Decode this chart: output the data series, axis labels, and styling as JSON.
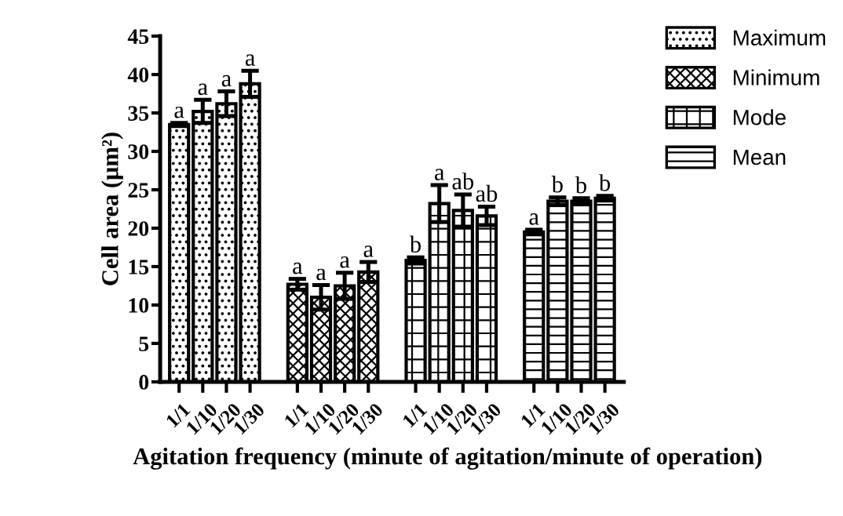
{
  "chart_data": {
    "type": "bar",
    "xlabel": "Agitation frequency (minute of agitation/minute of operation)",
    "ylabel": "Cell area (μm²)",
    "categories": [
      "1/1",
      "1/10",
      "1/20",
      "1/30",
      null,
      "1/1",
      "1/10",
      "1/20",
      "1/30",
      null,
      "1/1",
      "1/10",
      "1/20",
      "1/30",
      null,
      "1/1",
      "1/10",
      "1/20",
      "1/30"
    ],
    "series": [
      {
        "name": "Maximum",
        "color": "#000000",
        "values": [
          33.5,
          35.2,
          36.2,
          38.8,
          null,
          null,
          null,
          null,
          null,
          null,
          null,
          null,
          null,
          null,
          null,
          null,
          null,
          null,
          null
        ],
        "errors": [
          0.2,
          1.5,
          1.6,
          1.7,
          null,
          null,
          null,
          null,
          null,
          null,
          null,
          null,
          null,
          null,
          null,
          null,
          null,
          null,
          null
        ]
      },
      {
        "name": "Minimum",
        "color": "#000000",
        "values": [
          null,
          null,
          null,
          null,
          null,
          12.7,
          11.0,
          12.5,
          14.3,
          null,
          null,
          null,
          null,
          null,
          null,
          null,
          null,
          null,
          null
        ],
        "errors": [
          null,
          null,
          null,
          null,
          null,
          0.7,
          1.6,
          1.7,
          1.3,
          null,
          null,
          null,
          null,
          null,
          null,
          null,
          null,
          null,
          null
        ]
      },
      {
        "name": "Mode",
        "color": "#000000",
        "values": [
          null,
          null,
          null,
          null,
          null,
          null,
          null,
          null,
          null,
          null,
          15.8,
          23.2,
          22.3,
          21.6,
          null,
          null,
          null,
          null,
          null
        ],
        "errors": [
          null,
          null,
          null,
          null,
          null,
          null,
          null,
          null,
          null,
          null,
          0.4,
          2.4,
          2.1,
          1.2,
          null,
          null,
          null,
          null,
          null
        ]
      },
      {
        "name": "Mean",
        "color": "#000000",
        "values": [
          null,
          null,
          null,
          null,
          null,
          null,
          null,
          null,
          null,
          null,
          null,
          null,
          null,
          null,
          null,
          19.5,
          23.5,
          23.5,
          23.9
        ],
        "errors": [
          null,
          null,
          null,
          null,
          null,
          null,
          null,
          null,
          null,
          null,
          null,
          null,
          null,
          null,
          null,
          0.3,
          0.5,
          0.4,
          0.3
        ]
      }
    ],
    "annotations": [
      {
        "text": "a",
        "y": 33.7
      },
      {
        "text": "a",
        "y": 36.7
      },
      {
        "text": "a",
        "y": 37.8
      },
      {
        "text": "a",
        "y": 40.5
      },
      {
        "text": "a",
        "y": 13.4
      },
      {
        "text": "a",
        "y": 12.6
      },
      {
        "text": "a",
        "y": 14.2
      },
      {
        "text": "a",
        "y": 15.6
      },
      {
        "text": "b",
        "y": 16.2
      },
      {
        "text": "a",
        "y": 25.6
      },
      {
        "text": "ab",
        "y": 24.4
      },
      {
        "text": "ab",
        "y": 22.8
      },
      {
        "text": "a",
        "y": 19.8
      },
      {
        "text": "b",
        "y": 24.0
      },
      {
        "text": "b",
        "y": 23.9
      },
      {
        "text": "b",
        "y": 24.2
      }
    ],
    "ylim": [
      0,
      45
    ],
    "yticks": [
      0,
      5,
      10,
      15,
      20,
      25,
      30,
      35,
      40,
      45
    ],
    "grid": false,
    "legend": "right"
  }
}
